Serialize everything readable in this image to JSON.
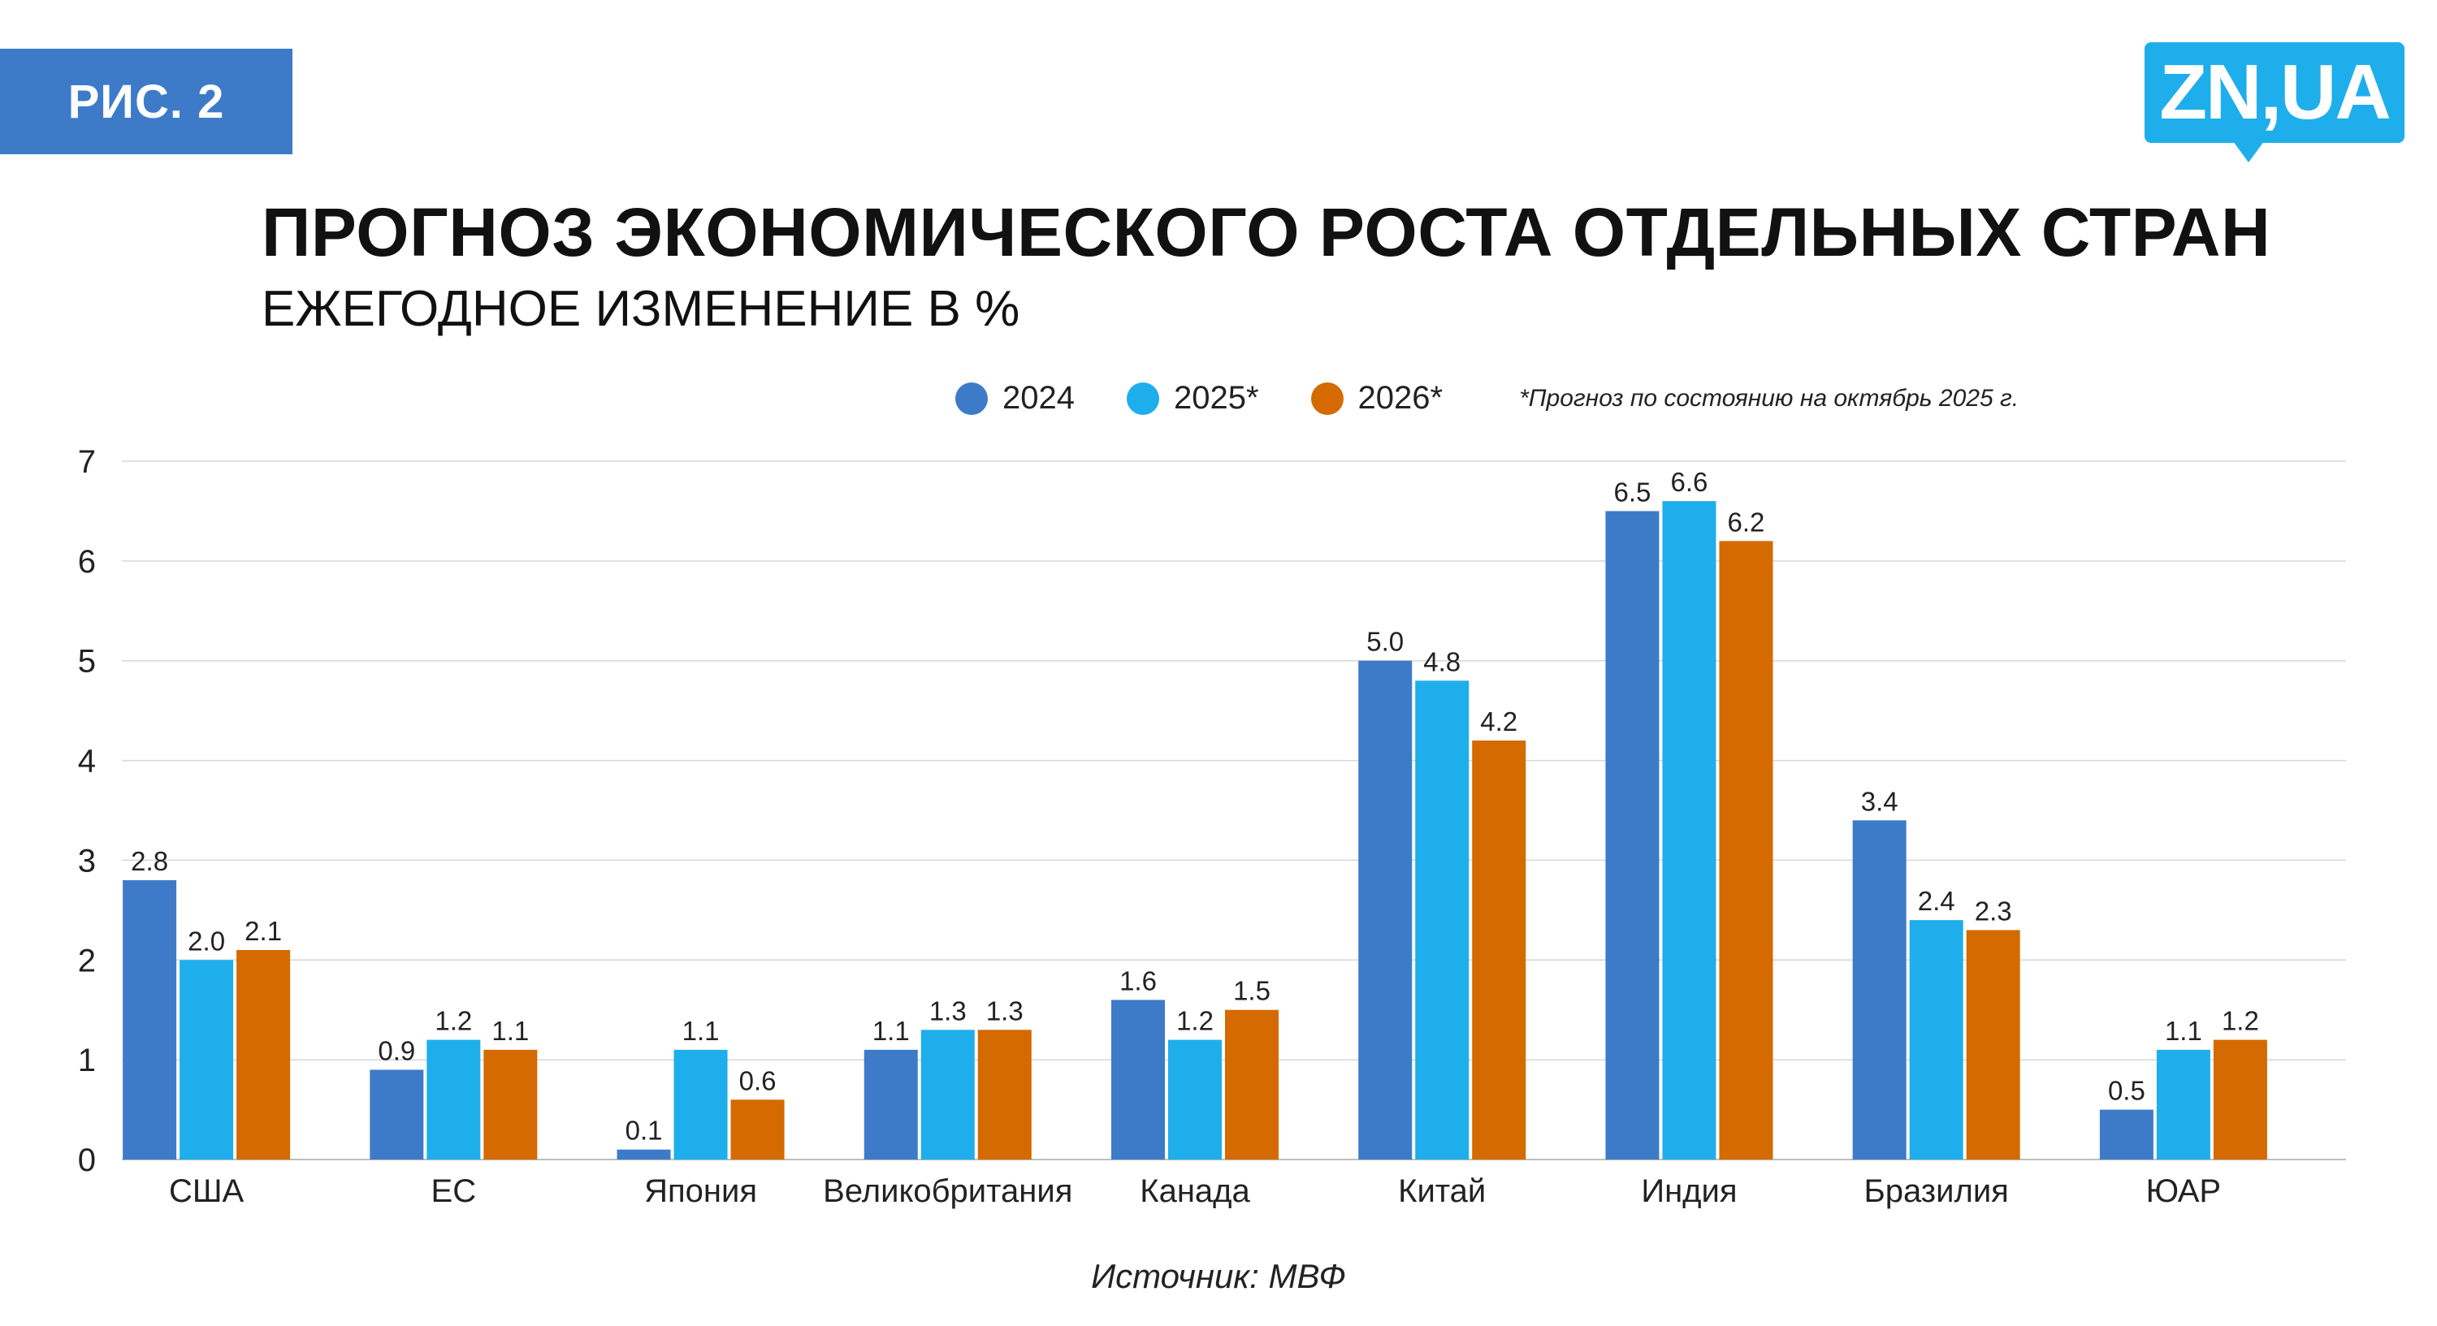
{
  "badge": "РИС. 2",
  "logo": "ZN,UA",
  "header": {
    "title": "ПРОГНОЗ ЭКОНОМИЧЕСКОГО РОСТА ОТДЕЛЬНЫХ СТРАН",
    "subtitle": "ЕЖЕГОДНОЕ ИЗМЕНЕНИЕ В %"
  },
  "legend": {
    "items": [
      {
        "label": "2024",
        "color": "#3D7BC8"
      },
      {
        "label": "2025*",
        "color": "#1EAEEB"
      },
      {
        "label": "2026*",
        "color": "#D46A00"
      }
    ],
    "note": "*Прогноз по состоянию на октябрь 2025 г."
  },
  "source": "Источник: МВФ",
  "chart_data": {
    "type": "bar",
    "title": "ПРОГНОЗ ЭКОНОМИЧЕСКОГО РОСТА ОТДЕЛЬНЫХ СТРАН",
    "subtitle": "ЕЖЕГОДНОЕ ИЗМЕНЕНИЕ В %",
    "xlabel": "",
    "ylabel": "",
    "ylim": [
      0,
      7
    ],
    "yticks": [
      "0",
      "1",
      "2",
      "3",
      "4",
      "5",
      "6",
      "7"
    ],
    "grid": true,
    "legend_position": "top",
    "categories": [
      "США",
      "ЕС",
      "Япония",
      "Великобритания",
      "Канада",
      "Китай",
      "Индия",
      "Бразилия",
      "ЮАР"
    ],
    "series": [
      {
        "name": "2024",
        "color": "#3D7BC8",
        "values": [
          2.8,
          0.9,
          0.1,
          1.1,
          1.6,
          5.0,
          6.5,
          3.4,
          0.5
        ],
        "labels": [
          "2.8",
          "0.9",
          "0.1",
          "1.1",
          "1.6",
          "5.0",
          "6.5",
          "3.4",
          "0.5"
        ]
      },
      {
        "name": "2025*",
        "color": "#1EAEEB",
        "values": [
          2.0,
          1.2,
          1.1,
          1.3,
          1.2,
          4.8,
          6.6,
          2.4,
          1.1
        ],
        "labels": [
          "2.0",
          "1.2",
          "1.1",
          "1.3",
          "1.2",
          "4.8",
          "6.6",
          "2.4",
          "1.1"
        ]
      },
      {
        "name": "2026*",
        "color": "#D46A00",
        "values": [
          2.1,
          1.1,
          0.6,
          1.3,
          1.5,
          4.2,
          6.2,
          2.3,
          1.2
        ],
        "labels": [
          "2.1",
          "1.1",
          "0.6",
          "1.3",
          "1.5",
          "4.2",
          "6.2",
          "2.3",
          "1.2"
        ]
      }
    ]
  }
}
